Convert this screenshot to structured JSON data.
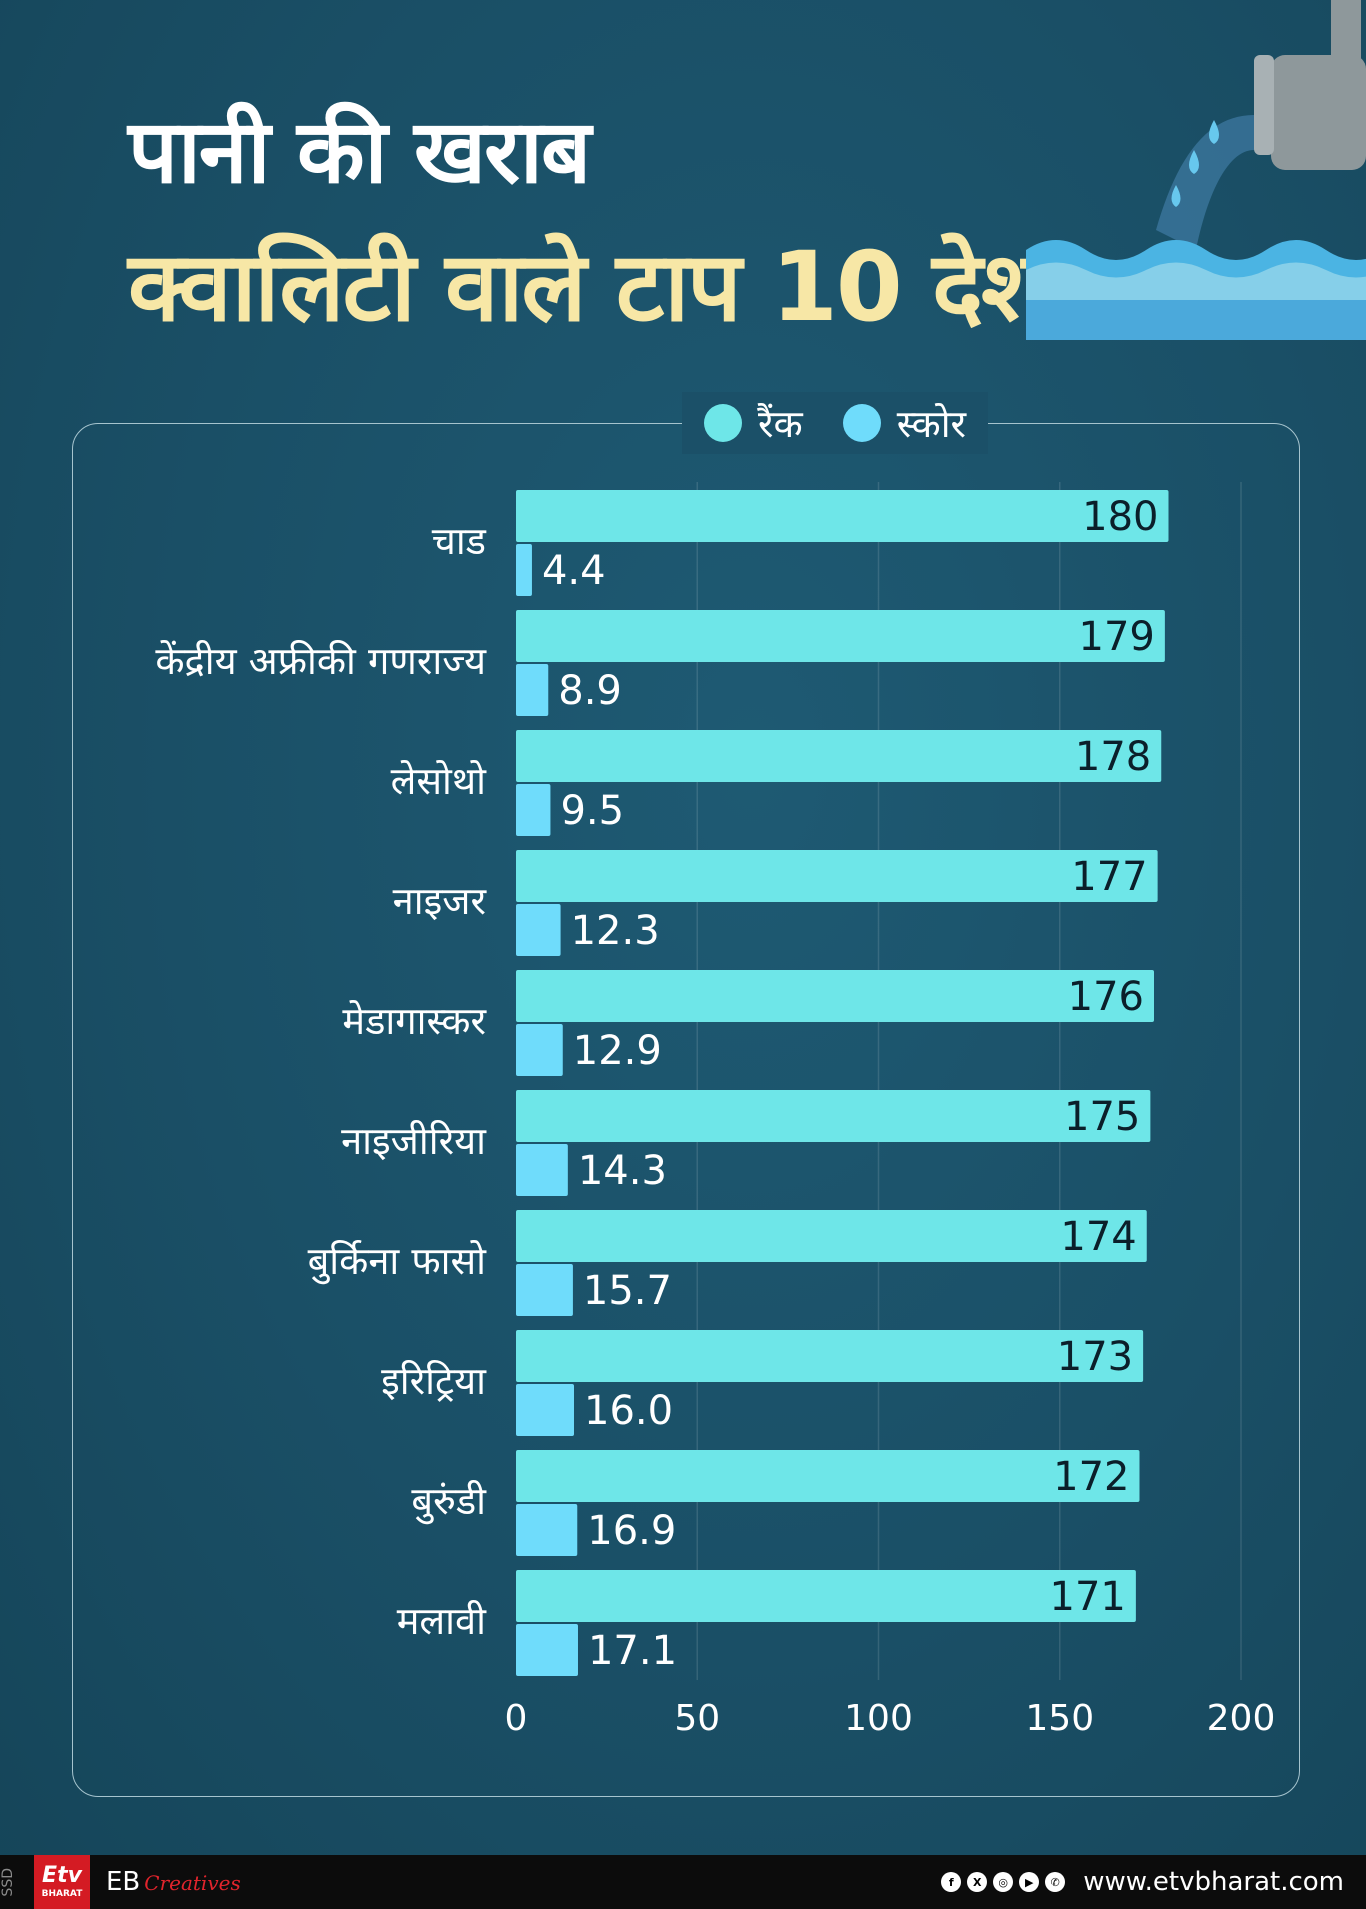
{
  "header": {
    "title_line1": "पानी की खराब",
    "title_line2": "क्वालिटी वाले टाप 10 देश"
  },
  "colors": {
    "rank": "#6ee6e8",
    "score": "#6fdcfb",
    "title_highlight": "#f7e7a6"
  },
  "legend": [
    {
      "label": "रैंक",
      "color": "#6ee6e8"
    },
    {
      "label": "स्कोर",
      "color": "#6fdcfb"
    }
  ],
  "chart_data": {
    "type": "bar",
    "orientation": "horizontal",
    "categories": [
      "चाड",
      "केंद्रीय अफ्रीकी गणराज्य",
      "लेसोथो",
      "नाइजर",
      "मेडागास्कर",
      "नाइजीरिया",
      "बुर्किना फासो",
      "इरिट्रिया",
      "बुरुंडी",
      "मलावी"
    ],
    "series": [
      {
        "name": "रैंक",
        "values": [
          180,
          179,
          178,
          177,
          176,
          175,
          174,
          173,
          172,
          171
        ],
        "labels": [
          "180",
          "179",
          "178",
          "177",
          "176",
          "175",
          "174",
          "173",
          "172",
          "171"
        ]
      },
      {
        "name": "स्कोर",
        "values": [
          4.4,
          8.9,
          9.5,
          12.3,
          12.9,
          14.3,
          15.7,
          16.0,
          16.9,
          17.1
        ],
        "labels": [
          "4.4",
          "8.9",
          "9.5",
          "12.3",
          "12.9",
          "14.3",
          "15.7",
          "16.0",
          "16.9",
          "17.1"
        ]
      }
    ],
    "xlim": [
      0,
      200
    ],
    "xticks": [
      0,
      50,
      100,
      150,
      200
    ],
    "xtick_labels": [
      "0",
      "50",
      "100",
      "150",
      "200"
    ],
    "grid": true,
    "legend_position": "top-center"
  },
  "footer": {
    "side_label": "SSD",
    "logo_text": "Etv",
    "logo_sub": "BHARAT",
    "brand": "EB",
    "brand_suffix": "Creatives",
    "social_icons": [
      {
        "icon": "facebook-icon",
        "glyph": "f"
      },
      {
        "icon": "x-icon",
        "glyph": "X"
      },
      {
        "icon": "instagram-icon",
        "glyph": "◎"
      },
      {
        "icon": "youtube-icon",
        "glyph": "▶"
      },
      {
        "icon": "whatsapp-icon",
        "glyph": "✆"
      }
    ],
    "website": "www.etvbharat.com"
  }
}
